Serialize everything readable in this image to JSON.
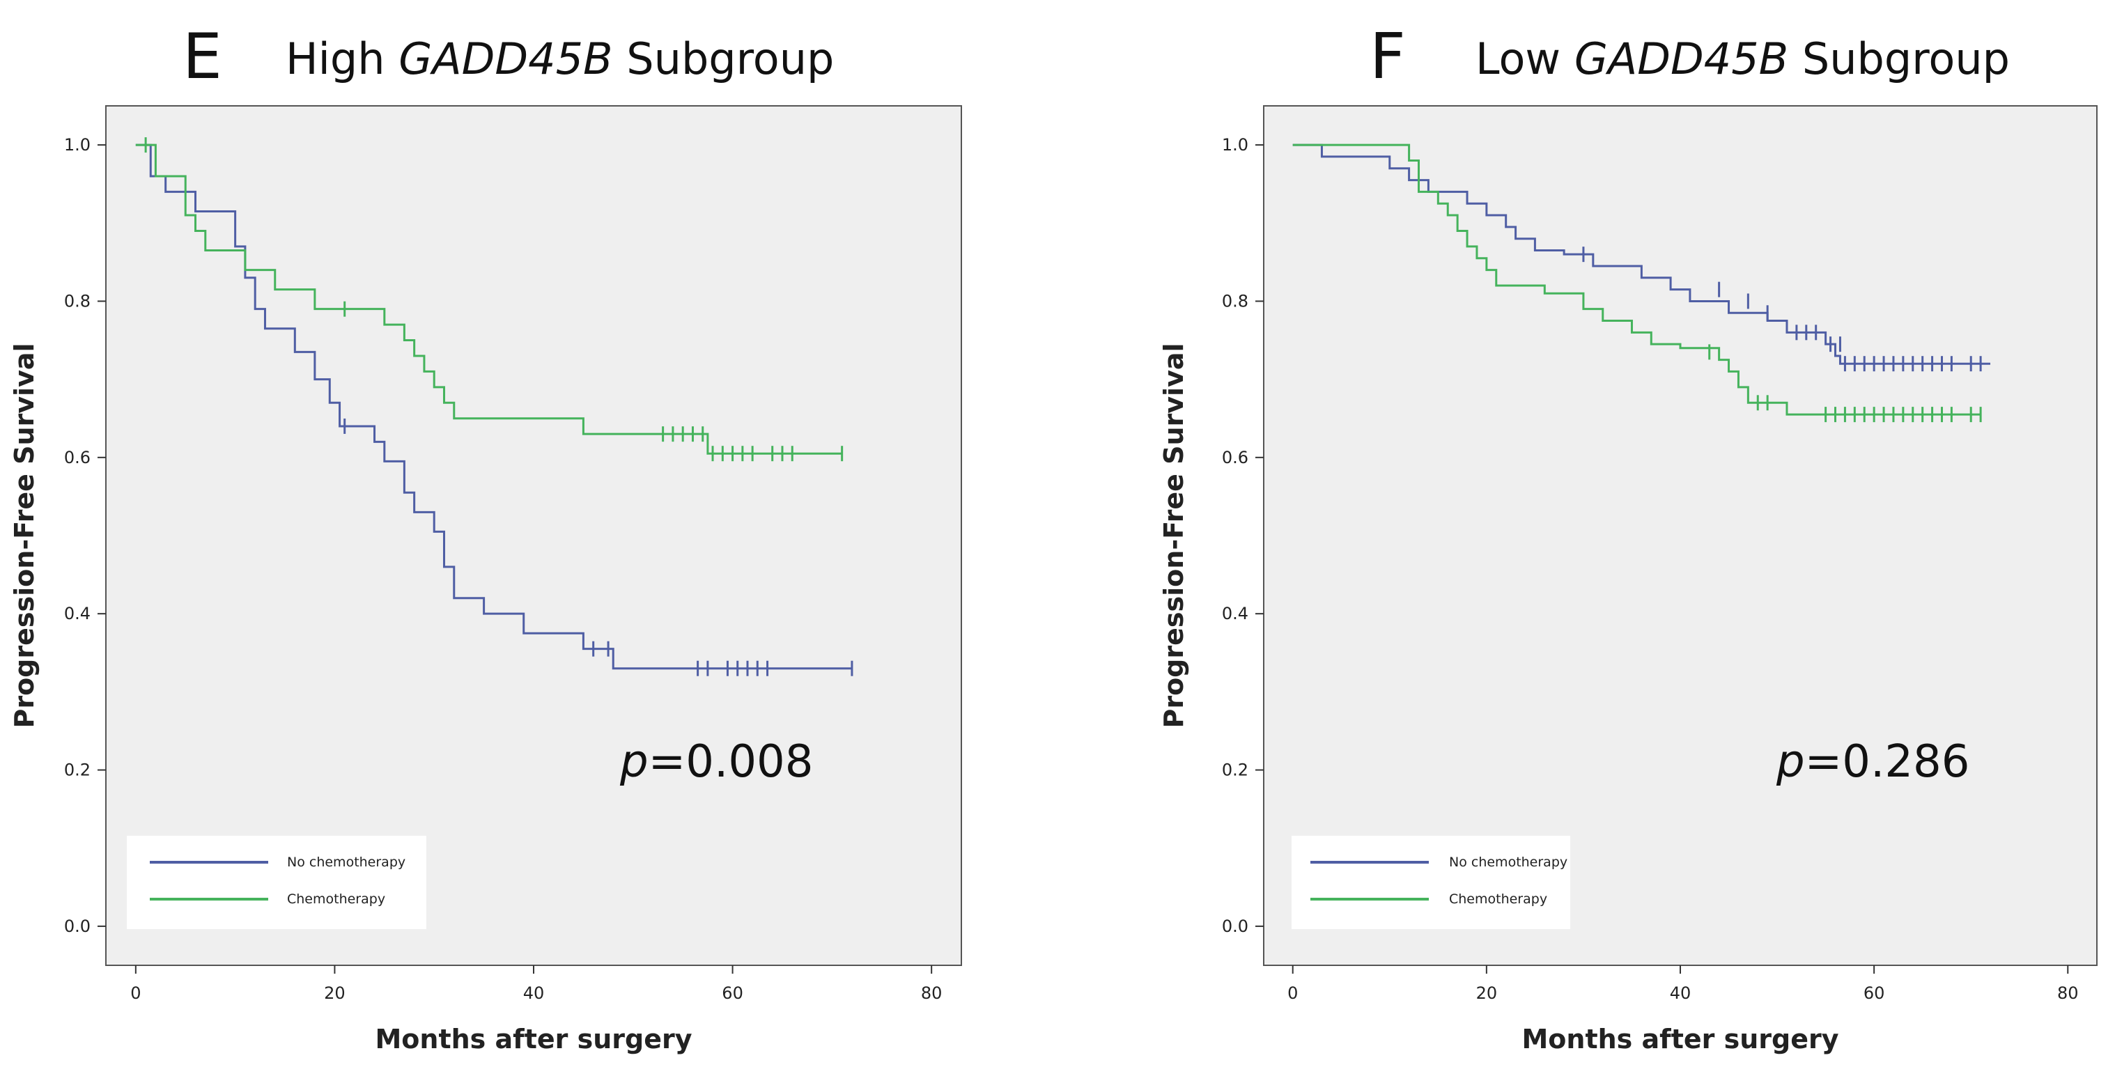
{
  "colors": {
    "no_chemo": "#4f5ea4",
    "chemo": "#45b35c",
    "plot_bg": "#efefef"
  },
  "chart_data": [
    {
      "type": "line",
      "panel": "E",
      "title_pre": "High ",
      "title_gene": "GADD45B",
      "title_post": " Subgroup",
      "xlabel": "Months after surgery",
      "ylabel": "Progression-Free Survival",
      "xlim": [
        -3,
        83
      ],
      "ylim": [
        -0.05,
        1.05
      ],
      "xticks": [
        0,
        20,
        40,
        60,
        80
      ],
      "yticks": [
        0.0,
        0.2,
        0.4,
        0.6,
        0.8,
        1.0
      ],
      "p_prefix": "p",
      "p_value": "=0.008",
      "legend_position": "bottom-left",
      "series": [
        {
          "name": "No chemotherapy",
          "color_key": "no_chemo",
          "steps": [
            [
              0,
              1.0
            ],
            [
              1.5,
              0.96
            ],
            [
              3,
              0.94
            ],
            [
              6,
              0.915
            ],
            [
              10,
              0.87
            ],
            [
              11,
              0.83
            ],
            [
              12,
              0.79
            ],
            [
              13,
              0.765
            ],
            [
              16,
              0.735
            ],
            [
              18,
              0.7
            ],
            [
              19.5,
              0.67
            ],
            [
              20.5,
              0.64
            ],
            [
              24,
              0.62
            ],
            [
              25,
              0.595
            ],
            [
              27,
              0.555
            ],
            [
              28,
              0.53
            ],
            [
              30,
              0.505
            ],
            [
              31,
              0.46
            ],
            [
              32,
              0.42
            ],
            [
              35,
              0.4
            ],
            [
              39,
              0.375
            ],
            [
              45,
              0.355
            ],
            [
              48,
              0.33
            ],
            [
              72,
              0.33
            ]
          ],
          "censors": [
            [
              21,
              0.64
            ],
            [
              46,
              0.355
            ],
            [
              47.5,
              0.355
            ],
            [
              56.5,
              0.33
            ],
            [
              57.5,
              0.33
            ],
            [
              59.5,
              0.33
            ],
            [
              60.5,
              0.33
            ],
            [
              61.5,
              0.33
            ],
            [
              62.5,
              0.33
            ],
            [
              63.5,
              0.33
            ],
            [
              72,
              0.33
            ]
          ]
        },
        {
          "name": "Chemotherapy",
          "color_key": "chemo",
          "steps": [
            [
              0,
              1.0
            ],
            [
              2,
              0.96
            ],
            [
              5,
              0.91
            ],
            [
              6,
              0.89
            ],
            [
              7,
              0.865
            ],
            [
              11,
              0.84
            ],
            [
              14,
              0.815
            ],
            [
              18,
              0.79
            ],
            [
              25,
              0.77
            ],
            [
              27,
              0.75
            ],
            [
              28,
              0.73
            ],
            [
              29,
              0.71
            ],
            [
              30,
              0.69
            ],
            [
              31,
              0.67
            ],
            [
              32,
              0.65
            ],
            [
              45,
              0.63
            ],
            [
              57.5,
              0.605
            ],
            [
              71,
              0.605
            ]
          ],
          "censors": [
            [
              1,
              1.0
            ],
            [
              21,
              0.79
            ],
            [
              53,
              0.63
            ],
            [
              54,
              0.63
            ],
            [
              55,
              0.63
            ],
            [
              56,
              0.63
            ],
            [
              57,
              0.63
            ],
            [
              58,
              0.605
            ],
            [
              59,
              0.605
            ],
            [
              60,
              0.605
            ],
            [
              61,
              0.605
            ],
            [
              62,
              0.605
            ],
            [
              64,
              0.605
            ],
            [
              65,
              0.605
            ],
            [
              66,
              0.605
            ],
            [
              71,
              0.605
            ]
          ]
        }
      ]
    },
    {
      "type": "line",
      "panel": "F",
      "title_pre": "Low ",
      "title_gene": "GADD45B",
      "title_post": " Subgroup",
      "xlabel": "Months after surgery",
      "ylabel": "Progression-Free Survival",
      "xlim": [
        -3,
        83
      ],
      "ylim": [
        -0.05,
        1.05
      ],
      "xticks": [
        0,
        20,
        40,
        60,
        80
      ],
      "yticks": [
        0.0,
        0.2,
        0.4,
        0.6,
        0.8,
        1.0
      ],
      "p_prefix": "p",
      "p_value": "=0.286",
      "legend_position": "bottom-left",
      "series": [
        {
          "name": "No chemotherapy",
          "color_key": "no_chemo",
          "steps": [
            [
              0,
              1.0
            ],
            [
              3,
              0.985
            ],
            [
              10,
              0.97
            ],
            [
              12,
              0.955
            ],
            [
              14,
              0.94
            ],
            [
              18,
              0.925
            ],
            [
              20,
              0.91
            ],
            [
              22,
              0.895
            ],
            [
              23,
              0.88
            ],
            [
              25,
              0.865
            ],
            [
              28,
              0.86
            ],
            [
              31,
              0.845
            ],
            [
              36,
              0.83
            ],
            [
              39,
              0.815
            ],
            [
              41,
              0.8
            ],
            [
              45,
              0.785
            ],
            [
              49,
              0.775
            ],
            [
              51,
              0.76
            ],
            [
              55,
              0.745
            ],
            [
              56,
              0.73
            ],
            [
              56.5,
              0.72
            ],
            [
              72,
              0.72
            ]
          ],
          "censors": [
            [
              30,
              0.86
            ],
            [
              44,
              0.815
            ],
            [
              47,
              0.8
            ],
            [
              49,
              0.785
            ],
            [
              52,
              0.76
            ],
            [
              53,
              0.76
            ],
            [
              54,
              0.76
            ],
            [
              55.5,
              0.745
            ],
            [
              56.5,
              0.745
            ],
            [
              57,
              0.72
            ],
            [
              58,
              0.72
            ],
            [
              59,
              0.72
            ],
            [
              60,
              0.72
            ],
            [
              61,
              0.72
            ],
            [
              62,
              0.72
            ],
            [
              63,
              0.72
            ],
            [
              64,
              0.72
            ],
            [
              65,
              0.72
            ],
            [
              66,
              0.72
            ],
            [
              67,
              0.72
            ],
            [
              68,
              0.72
            ],
            [
              70,
              0.72
            ],
            [
              71,
              0.72
            ]
          ]
        },
        {
          "name": "Chemotherapy",
          "color_key": "chemo",
          "steps": [
            [
              0,
              1.0
            ],
            [
              12,
              0.98
            ],
            [
              13,
              0.94
            ],
            [
              15,
              0.925
            ],
            [
              16,
              0.91
            ],
            [
              17,
              0.89
            ],
            [
              18,
              0.87
            ],
            [
              19,
              0.855
            ],
            [
              20,
              0.84
            ],
            [
              21,
              0.82
            ],
            [
              26,
              0.81
            ],
            [
              30,
              0.79
            ],
            [
              32,
              0.775
            ],
            [
              35,
              0.76
            ],
            [
              37,
              0.745
            ],
            [
              40,
              0.74
            ],
            [
              44,
              0.725
            ],
            [
              45,
              0.71
            ],
            [
              46,
              0.69
            ],
            [
              47,
              0.67
            ],
            [
              51,
              0.655
            ],
            [
              71,
              0.655
            ]
          ],
          "censors": [
            [
              43,
              0.735
            ],
            [
              48,
              0.67
            ],
            [
              49,
              0.67
            ],
            [
              55,
              0.655
            ],
            [
              56,
              0.655
            ],
            [
              57,
              0.655
            ],
            [
              58,
              0.655
            ],
            [
              59,
              0.655
            ],
            [
              60,
              0.655
            ],
            [
              61,
              0.655
            ],
            [
              62,
              0.655
            ],
            [
              63,
              0.655
            ],
            [
              64,
              0.655
            ],
            [
              65,
              0.655
            ],
            [
              66,
              0.655
            ],
            [
              67,
              0.655
            ],
            [
              68,
              0.655
            ],
            [
              70,
              0.655
            ],
            [
              71,
              0.655
            ]
          ]
        }
      ]
    }
  ]
}
